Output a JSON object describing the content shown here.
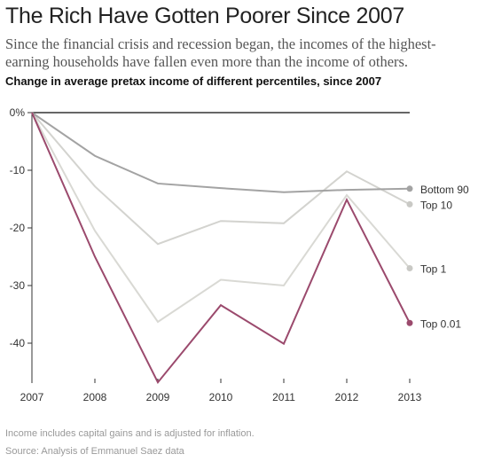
{
  "header": {
    "title": "The Rich Have Gotten Poorer Since 2007",
    "subtitle": "Since the financial crisis and recession began, the incomes of the highest-earning households have fallen even more than the income of others."
  },
  "footer": {
    "note": "Income includes capital gains and is adjusted for inflation.",
    "source": "Source: Analysis of Emmanuel Saez data"
  },
  "chart_data": {
    "type": "line",
    "title": "Change in average pretax income of different percentiles, since 2007",
    "xlabel": "",
    "ylabel": "",
    "x": [
      2007,
      2008,
      2009,
      2010,
      2011,
      2012,
      2013
    ],
    "ylim": [
      -48,
      0
    ],
    "yticks": [
      0,
      -10,
      -20,
      -30,
      -40
    ],
    "ytick_labels": [
      "0%",
      "-10",
      "-20",
      "-30",
      "-40"
    ],
    "grid": false,
    "legend": "labels at line ends",
    "series": [
      {
        "name": "Top 1",
        "values": [
          0,
          -20.5,
          -36.3,
          -29,
          -30,
          -14.3,
          -27
        ],
        "color": "#d9d9d4",
        "marker": true
      },
      {
        "name": "Top 10",
        "values": [
          0,
          -12.8,
          -22.8,
          -18.8,
          -19.2,
          -10.2,
          -15.9
        ],
        "color": "#d3d3cf",
        "marker": true
      },
      {
        "name": "Bottom 90",
        "values": [
          0,
          -7.5,
          -12.3,
          -13.1,
          -13.8,
          -13.4,
          -13.2
        ],
        "color": "#a3a3a3",
        "marker": true
      },
      {
        "name": "Top 0.01",
        "values": [
          0,
          -25,
          -46.8,
          -33.4,
          -40.1,
          -15.1,
          -36.5
        ],
        "color": "#9b4a6d",
        "marker": true
      }
    ],
    "label_order_top_to_bottom": [
      "Bottom 90",
      "Top 10",
      "Top 1",
      "Top 0.01"
    ]
  }
}
